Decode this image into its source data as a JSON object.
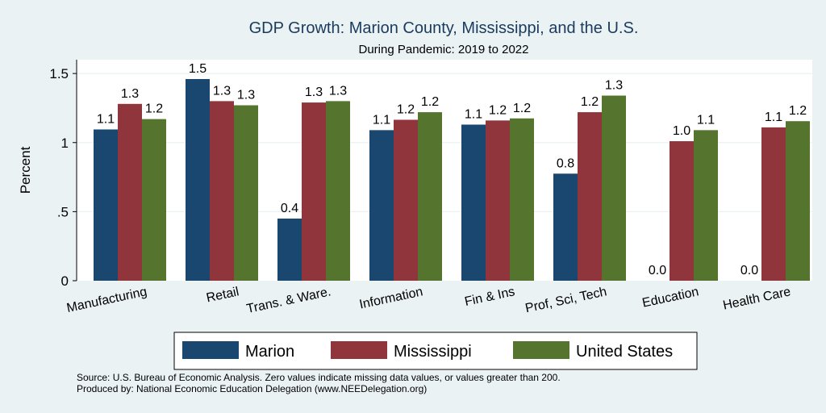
{
  "chart_data": {
    "type": "bar",
    "title": "GDP Growth: Marion County, Mississippi, and the U.S.",
    "subtitle": "During Pandemic: 2019 to 2022",
    "ylabel": "Percent",
    "ylim": [
      0,
      1.6
    ],
    "yticks": [
      {
        "value": 0,
        "label": "0"
      },
      {
        "value": 0.5,
        "label": ".5"
      },
      {
        "value": 1,
        "label": "1"
      },
      {
        "value": 1.5,
        "label": "1.5"
      }
    ],
    "grid": true,
    "legend_position": "bottom",
    "categories": [
      "Manufacturing",
      "Retail",
      "Trans. & Ware.",
      "Information",
      "Fin & Ins",
      "Prof, Sci, Tech",
      "Education",
      "Health Care"
    ],
    "series": [
      {
        "name": "Marion",
        "color": "#1a476f",
        "values": [
          1.095,
          1.46,
          0.45,
          1.09,
          1.13,
          0.775,
          0.0,
          0.0
        ],
        "labels": [
          "1.1",
          "1.5",
          "0.4",
          "1.1",
          "1.1",
          "0.8",
          "0.0",
          "0.0"
        ]
      },
      {
        "name": "Mississippi",
        "color": "#90353b",
        "values": [
          1.28,
          1.3,
          1.29,
          1.165,
          1.16,
          1.22,
          1.01,
          1.11
        ],
        "labels": [
          "1.3",
          "1.3",
          "1.3",
          "1.2",
          "1.2",
          "1.2",
          "1.0",
          "1.1"
        ]
      },
      {
        "name": "United States",
        "color": "#55752f",
        "values": [
          1.17,
          1.27,
          1.3,
          1.22,
          1.175,
          1.34,
          1.09,
          1.155
        ],
        "labels": [
          "1.2",
          "1.3",
          "1.3",
          "1.2",
          "1.2",
          "1.3",
          "1.1",
          "1.2"
        ]
      }
    ],
    "source_lines": [
      "Source: U.S. Bureau of Economic Analysis. Zero values indicate missing data values, or values greater than 200.",
      "Produced by: National Economic Education Delegation (www.NEEDelegation.org)"
    ]
  }
}
